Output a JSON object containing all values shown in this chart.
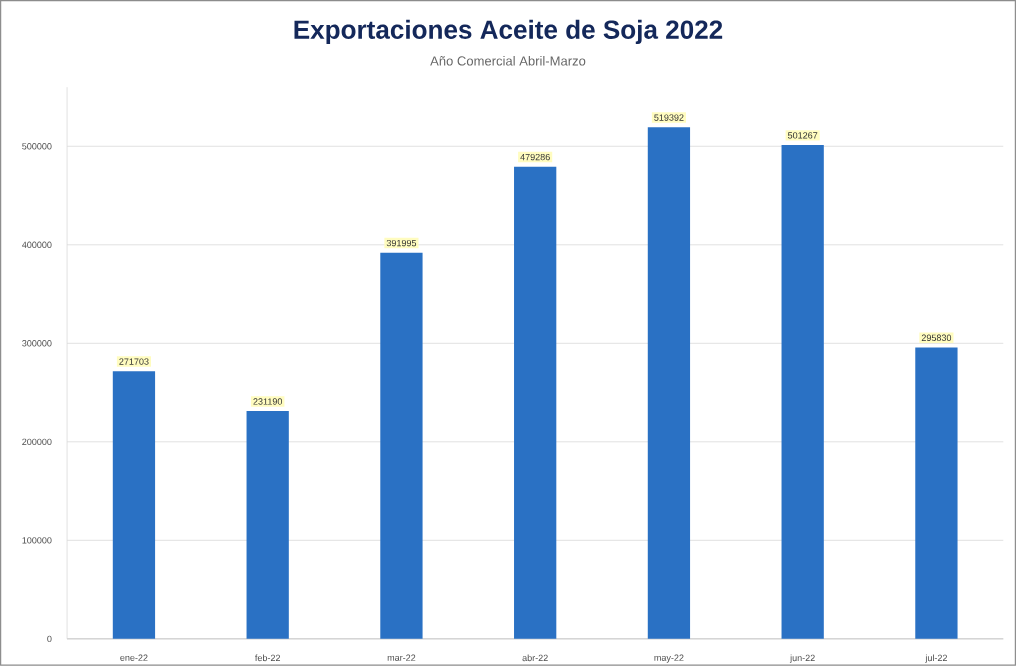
{
  "chart_data": {
    "type": "bar",
    "title": "Exportaciones Aceite de Soja 2022",
    "subtitle": "Año Comercial Abril-Marzo",
    "categories": [
      "ene-22",
      "feb-22",
      "mar-22",
      "abr-22",
      "may-22",
      "jun-22",
      "jul-22"
    ],
    "values": [
      271703,
      231190,
      391995,
      479286,
      519392,
      501267,
      295830
    ],
    "color": "#2a71c4",
    "ylim": [
      0,
      560000
    ],
    "yticks": [
      0,
      100000,
      200000,
      300000,
      400000,
      500000
    ],
    "grid": "y",
    "data_labels": true
  }
}
